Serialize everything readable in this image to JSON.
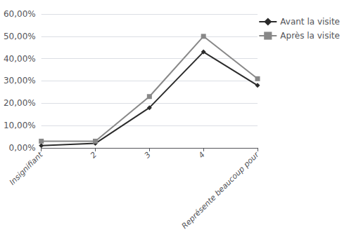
{
  "chart_data": {
    "type": "line",
    "categories": [
      "Insignifiant",
      "2",
      "3",
      "4",
      "Représente beaucoup pour"
    ],
    "series": [
      {
        "name": "Avant la visite",
        "color": "#2b2b2b",
        "marker": "diamond",
        "values": [
          0.01,
          0.02,
          0.18,
          0.43,
          0.28
        ]
      },
      {
        "name": "Après la visite",
        "color": "#888888",
        "marker": "square",
        "values": [
          0.03,
          0.03,
          0.23,
          0.5,
          0.31
        ]
      }
    ],
    "ylim": [
      0.0,
      0.6
    ],
    "yticks": [
      {
        "value": 0.0,
        "label": "0,00%"
      },
      {
        "value": 0.1,
        "label": "10,00%"
      },
      {
        "value": 0.2,
        "label": "20,00%"
      },
      {
        "value": 0.3,
        "label": "30,00%"
      },
      {
        "value": 0.4,
        "label": "40,00%"
      },
      {
        "value": 0.5,
        "label": "50,00%"
      },
      {
        "value": 0.6,
        "label": "60,00%"
      }
    ],
    "grid": true,
    "legend": "upper right"
  }
}
